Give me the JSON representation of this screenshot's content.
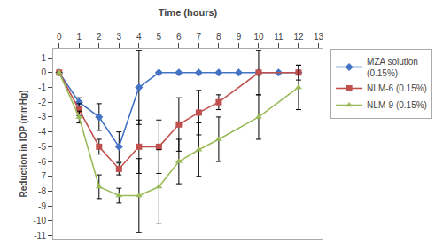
{
  "chart_data": {
    "type": "line",
    "xlabel": "Time (hours)",
    "ylabel": "Reduction in IOP (mmHg)",
    "xlim": [
      -0.3,
      13.2
    ],
    "ylim": [
      -11.2,
      1.6
    ],
    "xticks": [
      0,
      1,
      2,
      3,
      4,
      5,
      6,
      7,
      8,
      9,
      10,
      11,
      12,
      13
    ],
    "yticks": [
      1,
      0,
      -1,
      -2,
      -3,
      -4,
      -5,
      -6,
      -7,
      -8,
      -9,
      -10,
      -11
    ],
    "grid": false,
    "legend": "right",
    "series": [
      {
        "name": "MZA solution\n(0.15%)",
        "color": "#4472C4",
        "marker": "diamond",
        "x": [
          0,
          1,
          2,
          3,
          4,
          5,
          6,
          7,
          8,
          9,
          10,
          11,
          12
        ],
        "values": [
          0,
          -2.0,
          -3.0,
          -5.0,
          -1.0,
          0.0,
          0.0,
          0.0,
          0.0,
          0.0,
          0.0,
          0.0,
          0.0
        ],
        "errors": [
          0,
          0.3,
          0.9,
          1.0,
          2.5,
          0.0,
          0.0,
          0.0,
          0.0,
          0.0,
          0.0,
          0.0,
          0.0
        ]
      },
      {
        "name": "NLM-6 (0.15%)",
        "color": "#C0504D",
        "marker": "square",
        "x": [
          0,
          1,
          2,
          3,
          4,
          5,
          6,
          7,
          8,
          10,
          12
        ],
        "values": [
          0,
          -2.5,
          -5.0,
          -6.5,
          -5.0,
          -5.0,
          -3.5,
          -2.7,
          -2.0,
          0.0,
          0.0
        ],
        "errors": [
          0,
          0.4,
          0.5,
          0.4,
          1.8,
          1.8,
          1.8,
          1.5,
          0.5,
          1.5,
          0.5
        ]
      },
      {
        "name": "NLM-9 (0.15%)",
        "color": "#9BBB59",
        "marker": "triangle",
        "x": [
          0,
          1,
          2,
          3,
          4,
          5,
          6,
          7,
          8,
          10,
          12
        ],
        "values": [
          0,
          -3.0,
          -7.7,
          -8.3,
          -8.3,
          -7.7,
          -6.0,
          -5.2,
          -4.5,
          -3.0,
          -1.0
        ],
        "errors": [
          0,
          0.4,
          0.8,
          0.5,
          2.5,
          2.5,
          1.5,
          1.8,
          1.5,
          1.5,
          1.5
        ]
      }
    ]
  }
}
